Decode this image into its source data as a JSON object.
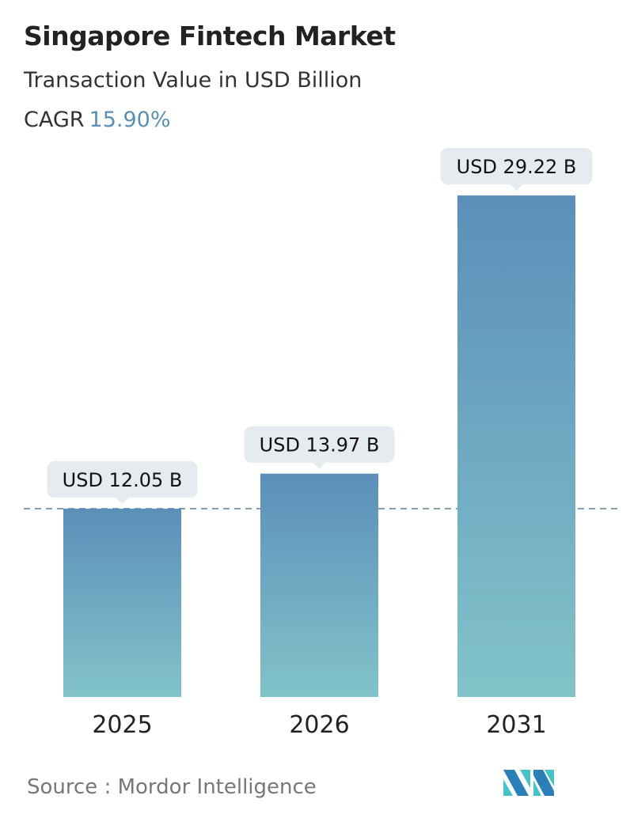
{
  "title": "Singapore Fintech Market",
  "subtitle": "Transaction Value in USD Billion",
  "cagr_label": "CAGR",
  "cagr_value": "15.90%",
  "source": "Source :  Mordor Intelligence",
  "logo": "Mordor Intelligence logo",
  "colors": {
    "bar_top": "#5b8fba",
    "bar_bottom": "#82c3c9",
    "label_bg": "#e5ebee",
    "accent": "#5a8fb3"
  },
  "chart_data": {
    "type": "bar",
    "categories": [
      "2025",
      "2026",
      "2031"
    ],
    "values": [
      12.05,
      13.97,
      29.22
    ],
    "data_labels": [
      "USD 12.05 B",
      "USD 13.97 B",
      "USD 29.22 B"
    ],
    "reference_line": {
      "value": 12.05,
      "style": "dashed"
    },
    "grid": false
  }
}
